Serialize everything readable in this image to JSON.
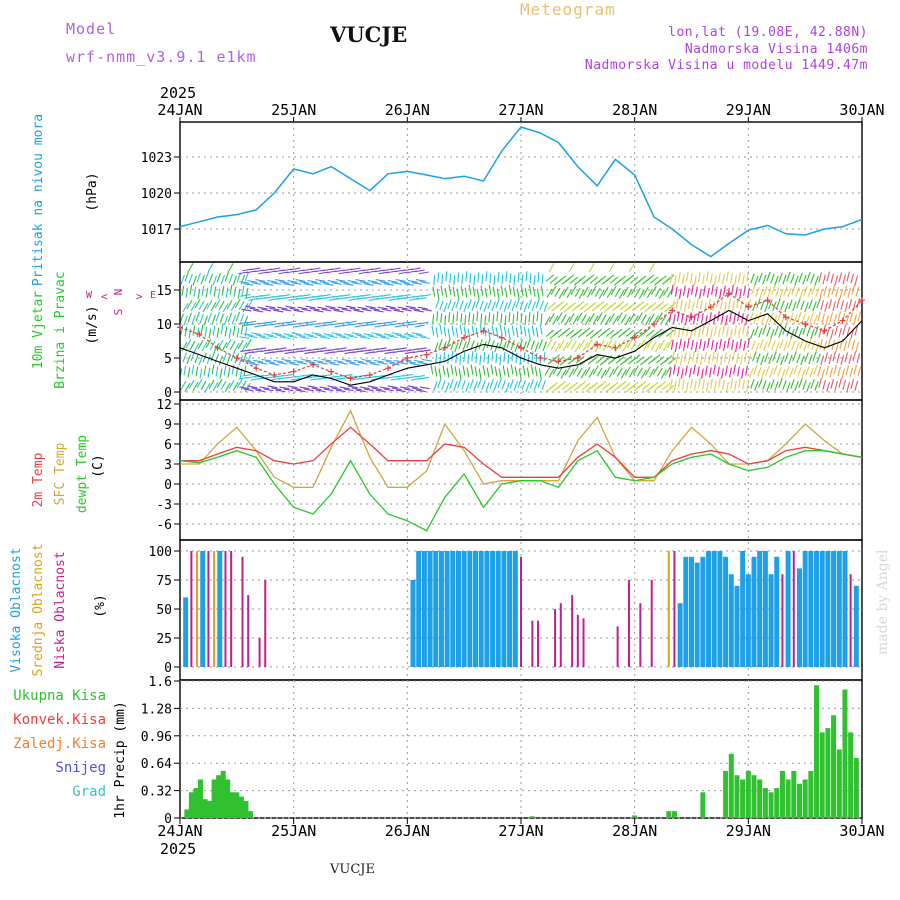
{
  "header": {
    "model_label": "Model",
    "model_name": "wrf-nmm_v3.9.1 e1km",
    "station": "VUCJE",
    "product": "Meteogram",
    "coords": "lon,lat (19.08E, 42.88N)",
    "elevation": "Nadmorska Visina 1406m",
    "model_elevation": "Nadmorska Visina u modelu 1449.47m",
    "year": "2025",
    "footer_station": "VUCJE",
    "credit": "made by Angel"
  },
  "colors": {
    "pressure": "#1ea0e6",
    "wind_speed": "#000000",
    "gust": "#e04040",
    "t2m": "#f03c3c",
    "sfc": "#d4a640",
    "dewpt": "#28c828",
    "high_cloud": "#1ea0e6",
    "mid_cloud": "#e0a020",
    "low_cloud": "#c0208a",
    "total_precip": "#30c030"
  },
  "chart_data": [
    {
      "type": "line",
      "panel": "pressure",
      "ylabel_main": "Pritisak na nivou mora",
      "unit": "(hPa)",
      "yticks": [
        "1017",
        "1020",
        "1023"
      ],
      "ylim": [
        1014,
        1025.5
      ],
      "x_day": [
        0,
        0.17,
        0.33,
        0.5,
        0.67,
        0.83,
        1.0,
        1.17,
        1.33,
        1.5,
        1.67,
        1.83,
        2.0,
        2.17,
        2.33,
        2.5,
        2.67,
        2.83,
        3.0,
        3.17,
        3.33,
        3.5,
        3.67,
        3.83,
        4.0,
        4.17,
        4.33,
        4.5,
        4.67,
        4.83,
        5.0,
        5.17,
        5.33,
        5.5,
        5.67,
        5.83,
        6.0
      ],
      "values": [
        1017.2,
        1017.6,
        1018.0,
        1018.2,
        1018.6,
        1020.0,
        1022.0,
        1021.6,
        1022.2,
        1021.2,
        1020.2,
        1021.6,
        1021.8,
        1021.5,
        1021.2,
        1021.4,
        1021.0,
        1023.5,
        1025.5,
        1025.0,
        1024.2,
        1022.2,
        1020.6,
        1022.8,
        1021.5,
        1018.0,
        1017.0,
        1015.7,
        1014.7,
        1015.8,
        1016.9,
        1017.3,
        1016.6,
        1016.5,
        1017.0,
        1017.2,
        1017.8
      ]
    },
    {
      "type": "line",
      "panel": "wind",
      "ylabel_main": "10m Vjetar",
      "ylabel_sub": "Brzina i Pravac",
      "unit": "(m/s)",
      "compass": {
        "n": "N",
        "s": "S",
        "e": "E",
        "w": "W"
      },
      "yticks": [
        "0",
        "5",
        "10",
        "15"
      ],
      "ylim": [
        -1,
        19
      ],
      "x_day": [
        0,
        0.17,
        0.33,
        0.5,
        0.67,
        0.83,
        1.0,
        1.17,
        1.33,
        1.5,
        1.67,
        1.83,
        2.0,
        2.17,
        2.33,
        2.5,
        2.67,
        2.83,
        3.0,
        3.17,
        3.33,
        3.5,
        3.67,
        3.83,
        4.0,
        4.17,
        4.33,
        4.5,
        4.67,
        4.83,
        5.0,
        5.17,
        5.33,
        5.5,
        5.67,
        5.83,
        6.0
      ],
      "series": [
        {
          "name": "speed",
          "values": [
            6.5,
            5.5,
            4.5,
            3.5,
            2.5,
            1.5,
            1.5,
            2.5,
            2.0,
            1.0,
            1.5,
            2.5,
            3.5,
            4.0,
            4.5,
            6.0,
            7.0,
            6.5,
            5.0,
            4.0,
            3.5,
            4.0,
            5.5,
            5.0,
            6.0,
            8.0,
            9.5,
            9.0,
            10.5,
            12.0,
            10.5,
            11.5,
            9.0,
            7.5,
            6.5,
            7.5,
            10.5
          ]
        },
        {
          "values": [
            9.5,
            8.5,
            6.5,
            5.0,
            3.5,
            2.5,
            3.0,
            4.0,
            3.0,
            2.0,
            2.5,
            3.5,
            5.0,
            5.5,
            6.5,
            8.0,
            9.0,
            8.0,
            6.5,
            5.0,
            4.5,
            5.0,
            7.0,
            6.5,
            8.0,
            10.0,
            12.0,
            11.0,
            12.5,
            14.5,
            12.5,
            13.5,
            11.0,
            10.0,
            9.0,
            10.5,
            13.5
          ]
        }
      ]
    },
    {
      "type": "line",
      "panel": "temperature",
      "ylabel_main": "2m Temp",
      "ylabel_sub": "SFC Temp",
      "ylabel_third": "dewpt Temp",
      "unit": "(C)",
      "yticks": [
        "-6",
        "-3",
        "0",
        "3",
        "6",
        "9",
        "12"
      ],
      "ylim": [
        -8,
        12
      ],
      "x_day": [
        0,
        0.17,
        0.33,
        0.5,
        0.67,
        0.83,
        1.0,
        1.17,
        1.33,
        1.5,
        1.67,
        1.83,
        2.0,
        2.17,
        2.33,
        2.5,
        2.67,
        2.83,
        3.0,
        3.17,
        3.33,
        3.5,
        3.67,
        3.83,
        4.0,
        4.17,
        4.33,
        4.5,
        4.67,
        4.83,
        5.0,
        5.17,
        5.33,
        5.5,
        5.67,
        5.83,
        6.0
      ],
      "series": [
        {
          "name": "2m Temp",
          "values": [
            3.5,
            3.5,
            4.5,
            5.5,
            5.0,
            3.5,
            3.0,
            3.5,
            6.0,
            8.5,
            6.0,
            3.5,
            3.5,
            3.5,
            6.0,
            5.5,
            3.0,
            1.0,
            1.0,
            1.0,
            1.0,
            4.0,
            6.0,
            4.0,
            1.0,
            1.0,
            3.5,
            4.5,
            5.0,
            4.5,
            3.0,
            3.5,
            5.0,
            5.5,
            5.0,
            4.5,
            4.0
          ]
        },
        {
          "name": "SFC Temp",
          "values": [
            3.0,
            3.0,
            6.0,
            8.5,
            5.0,
            1.0,
            -0.5,
            -0.5,
            5.5,
            11.0,
            4.0,
            -0.5,
            -0.5,
            2.0,
            9.0,
            5.0,
            0.0,
            0.5,
            0.5,
            0.5,
            0.5,
            6.5,
            10.0,
            4.0,
            0.5,
            0.5,
            5.0,
            8.5,
            6.0,
            3.0,
            3.0,
            3.5,
            6.0,
            9.0,
            6.5,
            4.5,
            4.0
          ]
        },
        {
          "name": "dewpt Temp",
          "values": [
            3.5,
            3.2,
            4.0,
            5.0,
            4.0,
            0.0,
            -3.5,
            -4.5,
            -1.5,
            3.5,
            -1.5,
            -4.5,
            -5.5,
            -7.0,
            -2.0,
            1.5,
            -3.5,
            0.0,
            0.5,
            0.5,
            -0.5,
            3.5,
            5.0,
            1.0,
            0.5,
            1.0,
            3.0,
            4.0,
            4.5,
            3.0,
            2.0,
            2.5,
            4.0,
            5.0,
            5.0,
            4.5,
            4.0
          ]
        }
      ]
    },
    {
      "type": "bar",
      "panel": "cloud",
      "ylabel_main": "Visoka Oblacnost",
      "ylabel_sub": "Srednja Oblacnost",
      "ylabel_third": "Niska Oblacnost",
      "unit": "(%)",
      "yticks": [
        "0",
        "25",
        "50",
        "75",
        "100"
      ],
      "ylim": [
        0,
        100
      ],
      "bars": [
        {
          "x_day": 0.05,
          "series": "high",
          "value": 60
        },
        {
          "x_day": 0.1,
          "series": "low",
          "value": 100
        },
        {
          "x_day": 0.15,
          "series": "mid",
          "value": 100
        },
        {
          "x_day": 0.2,
          "series": "high",
          "value": 100
        },
        {
          "x_day": 0.25,
          "series": "low",
          "value": 100
        },
        {
          "x_day": 0.3,
          "series": "mid",
          "value": 100
        },
        {
          "x_day": 0.35,
          "series": "high",
          "value": 100
        },
        {
          "x_day": 0.4,
          "series": "low",
          "value": 100
        },
        {
          "x_day": 0.45,
          "series": "low",
          "value": 100
        },
        {
          "x_day": 0.55,
          "series": "low",
          "value": 95
        },
        {
          "x_day": 0.6,
          "series": "low",
          "value": 62
        },
        {
          "x_day": 0.7,
          "series": "low",
          "value": 25
        },
        {
          "x_day": 0.75,
          "series": "low",
          "value": 75
        },
        {
          "x_day": 2.05,
          "series": "high",
          "value": 75
        },
        {
          "x_day": 2.1,
          "series": "high",
          "value": 100
        },
        {
          "x_day": 2.15,
          "series": "high",
          "value": 100
        },
        {
          "x_day": 2.2,
          "series": "high",
          "value": 100
        },
        {
          "x_day": 2.25,
          "series": "high",
          "value": 100
        },
        {
          "x_day": 2.3,
          "series": "high",
          "value": 100
        },
        {
          "x_day": 2.35,
          "series": "high",
          "value": 100
        },
        {
          "x_day": 2.4,
          "series": "high",
          "value": 100
        },
        {
          "x_day": 2.45,
          "series": "high",
          "value": 100
        },
        {
          "x_day": 2.5,
          "series": "high",
          "value": 100
        },
        {
          "x_day": 2.55,
          "series": "high",
          "value": 100
        },
        {
          "x_day": 2.6,
          "series": "high",
          "value": 100
        },
        {
          "x_day": 2.65,
          "series": "high",
          "value": 100
        },
        {
          "x_day": 2.7,
          "series": "high",
          "value": 100
        },
        {
          "x_day": 2.75,
          "series": "high",
          "value": 100
        },
        {
          "x_day": 2.8,
          "series": "high",
          "value": 100
        },
        {
          "x_day": 2.85,
          "series": "high",
          "value": 100
        },
        {
          "x_day": 2.9,
          "series": "high",
          "value": 100
        },
        {
          "x_day": 2.95,
          "series": "high",
          "value": 100
        },
        {
          "x_day": 3.0,
          "series": "low",
          "value": 95
        },
        {
          "x_day": 3.1,
          "series": "low",
          "value": 40
        },
        {
          "x_day": 3.15,
          "series": "low",
          "value": 40
        },
        {
          "x_day": 3.3,
          "series": "low",
          "value": 50
        },
        {
          "x_day": 3.35,
          "series": "low",
          "value": 55
        },
        {
          "x_day": 3.45,
          "series": "low",
          "value": 62
        },
        {
          "x_day": 3.5,
          "series": "low",
          "value": 45
        },
        {
          "x_day": 3.55,
          "series": "low",
          "value": 42
        },
        {
          "x_day": 3.85,
          "series": "low",
          "value": 35
        },
        {
          "x_day": 3.95,
          "series": "low",
          "value": 75
        },
        {
          "x_day": 4.05,
          "series": "low",
          "value": 55
        },
        {
          "x_day": 4.15,
          "series": "low",
          "value": 75
        },
        {
          "x_day": 4.3,
          "series": "mid",
          "value": 100
        },
        {
          "x_day": 4.35,
          "series": "low",
          "value": 100
        },
        {
          "x_day": 4.4,
          "series": "high",
          "value": 55
        },
        {
          "x_day": 4.45,
          "series": "high",
          "value": 95
        },
        {
          "x_day": 4.5,
          "series": "high",
          "value": 95
        },
        {
          "x_day": 4.55,
          "series": "high",
          "value": 90
        },
        {
          "x_day": 4.6,
          "series": "high",
          "value": 95
        },
        {
          "x_day": 4.65,
          "series": "high",
          "value": 100
        },
        {
          "x_day": 4.7,
          "series": "high",
          "value": 100
        },
        {
          "x_day": 4.75,
          "series": "high",
          "value": 100
        },
        {
          "x_day": 4.8,
          "series": "high",
          "value": 95
        },
        {
          "x_day": 4.85,
          "series": "high",
          "value": 80
        },
        {
          "x_day": 4.9,
          "series": "high",
          "value": 70
        },
        {
          "x_day": 4.95,
          "series": "high",
          "value": 100
        },
        {
          "x_day": 5.0,
          "series": "high",
          "value": 80
        },
        {
          "x_day": 5.05,
          "series": "high",
          "value": 95
        },
        {
          "x_day": 5.1,
          "series": "high",
          "value": 100
        },
        {
          "x_day": 5.15,
          "series": "high",
          "value": 100
        },
        {
          "x_day": 5.2,
          "series": "high",
          "value": 80
        },
        {
          "x_day": 5.25,
          "series": "high",
          "value": 95
        },
        {
          "x_day": 5.3,
          "series": "low",
          "value": 80
        },
        {
          "x_day": 5.35,
          "series": "high",
          "value": 100
        },
        {
          "x_day": 5.4,
          "series": "low",
          "value": 100
        },
        {
          "x_day": 5.45,
          "series": "high",
          "value": 85
        },
        {
          "x_day": 5.5,
          "series": "high",
          "value": 100
        },
        {
          "x_day": 5.55,
          "series": "high",
          "value": 100
        },
        {
          "x_day": 5.6,
          "series": "high",
          "value": 100
        },
        {
          "x_day": 5.65,
          "series": "high",
          "value": 100
        },
        {
          "x_day": 5.7,
          "series": "high",
          "value": 100
        },
        {
          "x_day": 5.75,
          "series": "high",
          "value": 100
        },
        {
          "x_day": 5.8,
          "series": "high",
          "value": 100
        },
        {
          "x_day": 5.85,
          "series": "high",
          "value": 100
        },
        {
          "x_day": 5.9,
          "series": "low",
          "value": 80
        },
        {
          "x_day": 5.95,
          "series": "high",
          "value": 70
        }
      ]
    },
    {
      "type": "bar",
      "panel": "precipitation",
      "ylabel_main": "1hr Precip",
      "unit": "(mm)",
      "legend": [
        "Ukupna Kisa",
        "Konvek.Kisa",
        "Zaledj.Kisa",
        "Snijeg",
        "Grad"
      ],
      "yticks": [
        "0",
        "0.32",
        "0.64",
        "0.96",
        "1.28",
        "1.6"
      ],
      "ylim": [
        0,
        1.6
      ],
      "x_day": [
        0.06,
        0.1,
        0.14,
        0.18,
        0.22,
        0.26,
        0.3,
        0.34,
        0.38,
        0.42,
        0.46,
        0.5,
        0.54,
        0.58,
        0.62,
        3.1,
        4.0,
        4.3,
        4.35,
        4.6,
        4.8,
        4.85,
        4.9,
        4.95,
        5.0,
        5.05,
        5.1,
        5.15,
        5.2,
        5.25,
        5.3,
        5.35,
        5.4,
        5.45,
        5.5,
        5.55,
        5.6,
        5.65,
        5.7,
        5.75,
        5.8,
        5.85,
        5.9,
        5.95
      ],
      "values": [
        0.1,
        0.3,
        0.35,
        0.45,
        0.22,
        0.2,
        0.45,
        0.5,
        0.55,
        0.45,
        0.3,
        0.3,
        0.25,
        0.2,
        0.08,
        0.02,
        0.03,
        0.08,
        0.08,
        0.3,
        0.55,
        0.75,
        0.5,
        0.45,
        0.55,
        0.5,
        0.45,
        0.35,
        0.3,
        0.35,
        0.55,
        0.45,
        0.55,
        0.4,
        0.45,
        0.55,
        1.55,
        1.0,
        1.05,
        1.2,
        0.8,
        1.5,
        1.0,
        0.7
      ]
    }
  ],
  "time_axis": {
    "labels": [
      "24JAN",
      "25JAN",
      "26JAN",
      "27JAN",
      "28JAN",
      "29JAN",
      "30JAN"
    ]
  },
  "wind_legend_chars": {
    "n": "N",
    "s": "S",
    "w": "W",
    "e": "E",
    "lt": "<",
    "gt": ">"
  }
}
